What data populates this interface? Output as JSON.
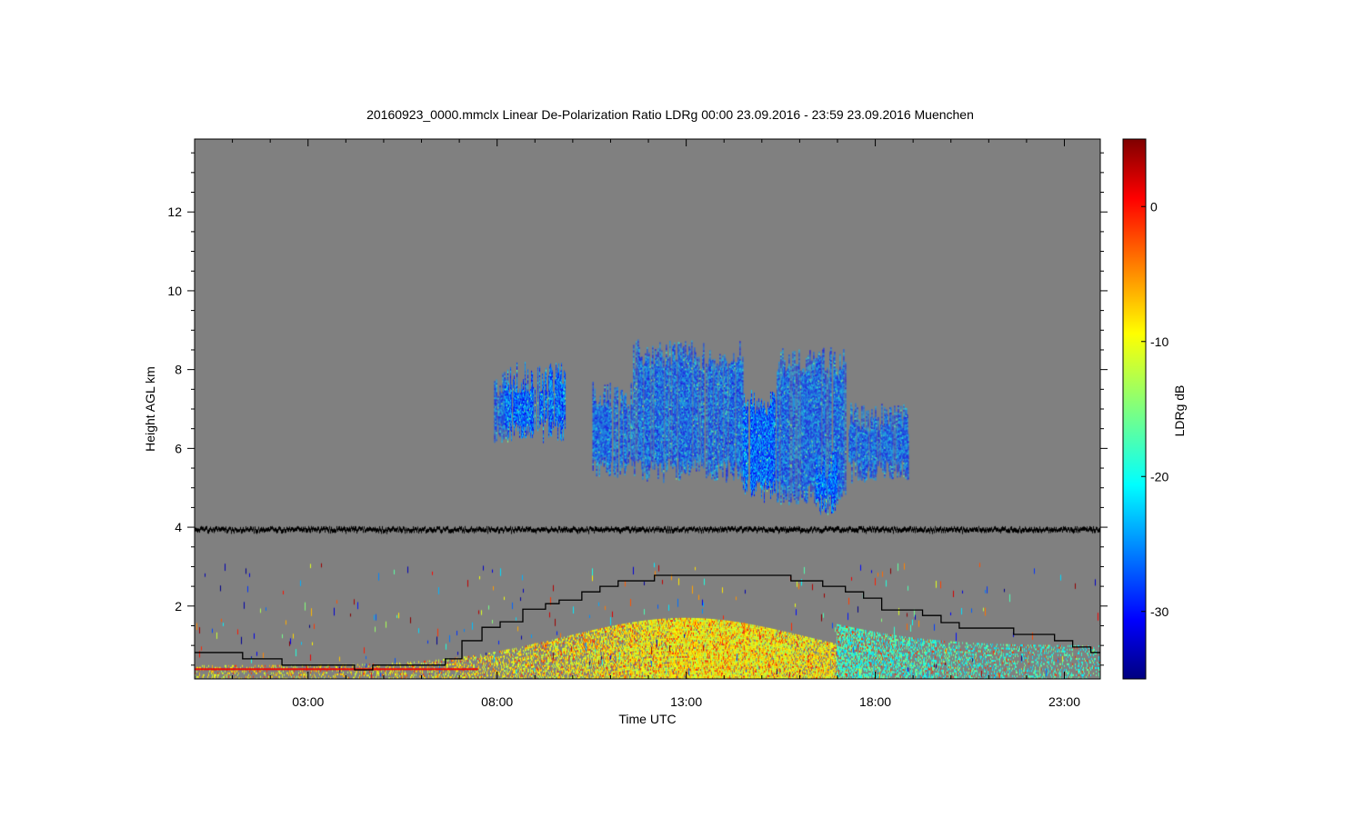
{
  "chart_data": {
    "type": "heatmap",
    "title": "20160923_0000.mmclx Linear De-Polarization Ratio LDRg   00:00 23.09.2016 - 23:59 23.09.2016 Muenchen",
    "xlabel": "Time UTC",
    "ylabel": "Height AGL km",
    "xlim_hours": [
      0,
      23.95
    ],
    "ylim_km": [
      0.15,
      13.85
    ],
    "x_ticks": [
      {
        "value": 3,
        "label": "03:00"
      },
      {
        "value": 8,
        "label": "08:00"
      },
      {
        "value": 13,
        "label": "13:00"
      },
      {
        "value": 18,
        "label": "18:00"
      },
      {
        "value": 23,
        "label": "23:00"
      }
    ],
    "y_ticks": [
      {
        "value": 2,
        "label": "2"
      },
      {
        "value": 4,
        "label": "4"
      },
      {
        "value": 6,
        "label": "6"
      },
      {
        "value": 8,
        "label": "8"
      },
      {
        "value": 10,
        "label": "10"
      },
      {
        "value": 12,
        "label": "12"
      }
    ],
    "colorbar": {
      "label": "LDRg dB",
      "range": [
        -35,
        5
      ],
      "colormap": "jet",
      "ticks": [
        {
          "value": 0,
          "label": "0"
        },
        {
          "value": -10,
          "label": "-10"
        },
        {
          "value": -20,
          "label": "-20"
        },
        {
          "value": -30,
          "label": "-30"
        }
      ]
    },
    "background_color": "#808080",
    "features": [
      {
        "name": "ice cloud",
        "time_range": [
          7.9,
          18.9
        ],
        "height_range_km": [
          4.3,
          8.9
        ],
        "ldr_typical_db": -25
      },
      {
        "name": "boundary layer echoes",
        "time_range": [
          0,
          23.95
        ],
        "height_range_km": [
          0.15,
          1.9
        ],
        "ldr_typical_db": -10
      },
      {
        "name": "noise line",
        "height_km": 3.95
      }
    ],
    "series": [
      {
        "name": "boundary layer height",
        "type": "step",
        "color": "#000000",
        "x": [
          0,
          1.27,
          2.31,
          4.23,
          4.71,
          6.63,
          7.07,
          7.6,
          8.08,
          8.68,
          9.28,
          9.64,
          10.24,
          10.72,
          11.2,
          12.16,
          15.77,
          16.61,
          17.21,
          17.69,
          18.17,
          19.25,
          19.74,
          20.22,
          21.66,
          22.74,
          23.22,
          23.7
        ],
        "y": [
          0.82,
          0.66,
          0.5,
          0.38,
          0.5,
          0.66,
          1.12,
          1.46,
          1.6,
          1.92,
          2.06,
          2.15,
          2.36,
          2.5,
          2.64,
          2.78,
          2.64,
          2.5,
          2.36,
          2.2,
          1.9,
          1.76,
          1.58,
          1.44,
          1.28,
          1.12,
          0.96,
          0.82
        ]
      }
    ]
  }
}
